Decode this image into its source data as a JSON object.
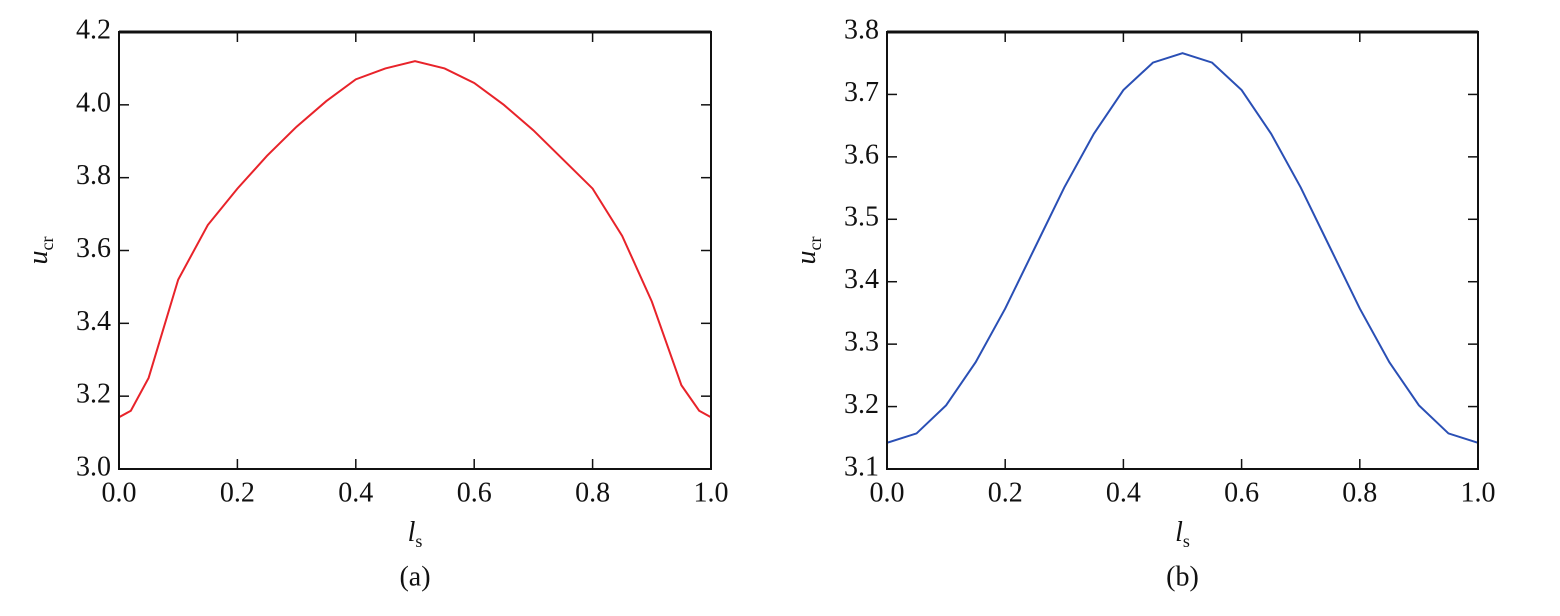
{
  "chart_data": [
    {
      "type": "line",
      "caption": "(a)",
      "xlabel": {
        "main": "l",
        "sub": "s"
      },
      "ylabel": {
        "main": "u",
        "sub": "cr"
      },
      "x": [
        0,
        0.02,
        0.05,
        0.1,
        0.15,
        0.2,
        0.25,
        0.3,
        0.35,
        0.4,
        0.45,
        0.5,
        0.55,
        0.6,
        0.65,
        0.7,
        0.75,
        0.8,
        0.85,
        0.9,
        0.95,
        0.98,
        1
      ],
      "series": [
        {
          "color": "#e8232a",
          "values": [
            3.142,
            3.16,
            3.25,
            3.52,
            3.67,
            3.77,
            3.86,
            3.94,
            4.01,
            4.07,
            4.1,
            4.12,
            4.1,
            4.06,
            4.0,
            3.93,
            3.85,
            3.77,
            3.64,
            3.46,
            3.23,
            3.16,
            3.142
          ]
        }
      ],
      "xlim": [
        0,
        1
      ],
      "ylim": [
        3.0,
        4.2
      ],
      "xticks": [
        {
          "value": 0,
          "label": "0.0"
        },
        0.2,
        0.4,
        0.6,
        0.8,
        {
          "value": 1,
          "label": "1.0"
        }
      ],
      "yticks": [
        {
          "value": 3,
          "label": "3.0"
        },
        3.2,
        3.4,
        3.6,
        3.8,
        {
          "value": 4,
          "label": "4.0"
        },
        4.2
      ]
    },
    {
      "type": "line",
      "caption": "(b)",
      "xlabel": {
        "main": "l",
        "sub": "s"
      },
      "ylabel": {
        "main": "u",
        "sub": "cr"
      },
      "x": [
        0,
        0.05,
        0.1,
        0.15,
        0.2,
        0.25,
        0.3,
        0.35,
        0.4,
        0.45,
        0.5,
        0.55,
        0.6,
        0.65,
        0.7,
        0.75,
        0.8,
        0.85,
        0.9,
        0.95,
        1
      ],
      "series": [
        {
          "color": "#2a4fb5",
          "values": [
            3.142,
            3.157,
            3.202,
            3.271,
            3.357,
            3.454,
            3.551,
            3.637,
            3.707,
            3.751,
            3.766,
            3.751,
            3.707,
            3.637,
            3.551,
            3.454,
            3.357,
            3.271,
            3.202,
            3.157,
            3.142
          ]
        }
      ],
      "xlim": [
        0,
        1
      ],
      "ylim": [
        3.1,
        3.8
      ],
      "xticks": [
        {
          "value": 0,
          "label": "0.0"
        },
        0.2,
        0.4,
        0.6,
        0.8,
        {
          "value": 1,
          "label": "1.0"
        }
      ],
      "yticks": [
        3.1,
        3.2,
        3.3,
        3.4,
        3.5,
        3.6,
        3.7,
        3.8
      ]
    }
  ]
}
